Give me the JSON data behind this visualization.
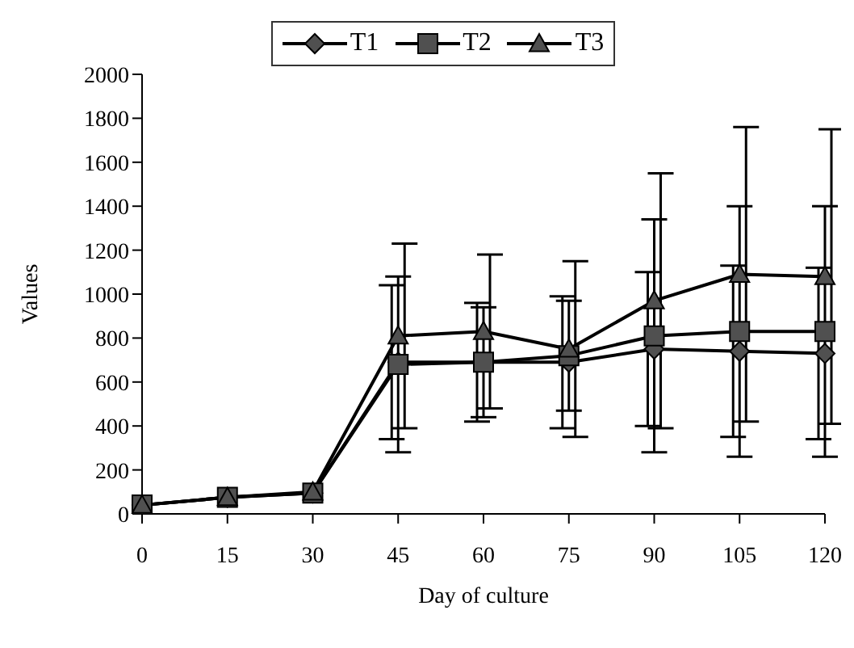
{
  "chart_data": {
    "type": "line",
    "xlabel": "Day of culture",
    "ylabel": "Values",
    "categories": [
      "0",
      "15",
      "30",
      "45",
      "60",
      "75",
      "90",
      "105",
      "120"
    ],
    "ylim": [
      0,
      2000
    ],
    "yticks": [
      0,
      200,
      400,
      600,
      800,
      1000,
      1200,
      1400,
      1600,
      1800,
      2000
    ],
    "grid": false,
    "legend": "top",
    "series": [
      {
        "name": "T1",
        "color": "#505050",
        "marker": "diamond",
        "values": [
          40,
          75,
          95,
          690,
          690,
          690,
          750,
          740,
          730
        ],
        "errors": [
          null,
          null,
          null,
          350,
          270,
          300,
          350,
          390,
          390
        ]
      },
      {
        "name": "T2",
        "color": "#505050",
        "marker": "square",
        "values": [
          40,
          75,
          95,
          680,
          690,
          720,
          810,
          830,
          830
        ],
        "errors": [
          null,
          null,
          null,
          400,
          250,
          250,
          530,
          570,
          570
        ]
      },
      {
        "name": "T3",
        "color": "#505050",
        "marker": "triangle",
        "values": [
          40,
          75,
          100,
          810,
          830,
          750,
          970,
          1090,
          1080
        ],
        "errors": [
          null,
          null,
          null,
          420,
          350,
          400,
          580,
          670,
          670
        ]
      }
    ]
  }
}
